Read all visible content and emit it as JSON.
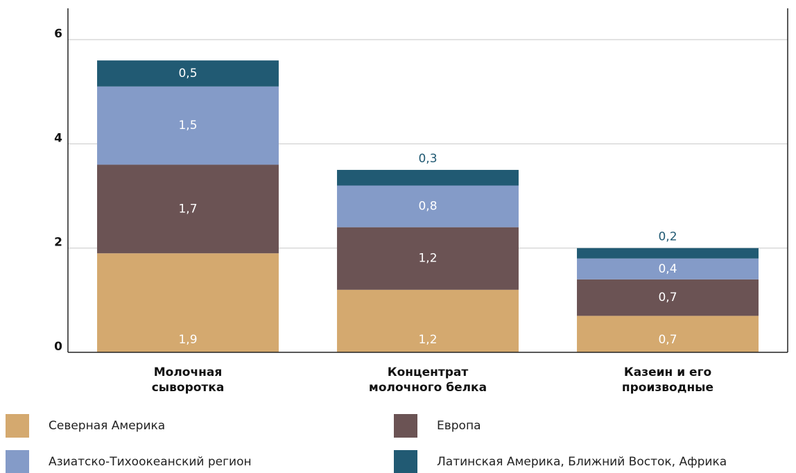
{
  "chart_data": {
    "type": "stacked_bar",
    "categories": [
      "Молочная\nсыворотка",
      "Концентрат\nмолочного белка",
      "Казеин и его\nпроизводные"
    ],
    "series": [
      {
        "name": "Северная Америка",
        "color": "#d4a96f",
        "values": [
          1.9,
          1.2,
          0.7
        ],
        "value_labels": [
          "1,9",
          "1,2",
          "0,7"
        ]
      },
      {
        "name": "Европа",
        "color": "#6b5354",
        "values": [
          1.7,
          1.2,
          0.7
        ],
        "value_labels": [
          "1,7",
          "1,2",
          "0,7"
        ]
      },
      {
        "name": "Азиатско-Тихоокеанский регион",
        "color": "#849bc8",
        "values": [
          1.5,
          0.8,
          0.4
        ],
        "value_labels": [
          "1,5",
          "0,8",
          "0,4"
        ]
      },
      {
        "name": "Латинская Америка, Ближний Восток, Африка",
        "color": "#215a73",
        "values": [
          0.5,
          0.3,
          0.2
        ],
        "value_labels": [
          "0,5",
          "0,3",
          "0,2"
        ]
      }
    ],
    "ylim": [
      0,
      6.6
    ],
    "yticks": [
      0,
      2,
      4,
      6
    ],
    "grid": true
  }
}
